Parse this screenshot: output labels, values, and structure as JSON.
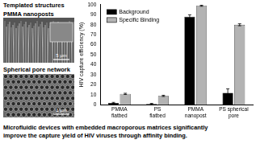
{
  "chart_data": {
    "type": "bar",
    "categories": [
      [
        "PMMA",
        "flatbed"
      ],
      [
        "PS",
        "flatbed"
      ],
      [
        "PMMA",
        "nanopost"
      ],
      [
        "PS spherical",
        "pore"
      ]
    ],
    "series": [
      {
        "name": "Background",
        "color": "#000000",
        "values": [
          2,
          1,
          88,
          12
        ],
        "errors": [
          0.5,
          0.5,
          2,
          4
        ]
      },
      {
        "name": "Specific Binding",
        "color": "#b3b3b3",
        "values": [
          11,
          9,
          99,
          80
        ],
        "errors": [
          0.6,
          0.6,
          0.5,
          1
        ]
      }
    ],
    "y_label": "HIV capture efficiency (%)",
    "ylim": [
      0,
      100
    ],
    "yticks": [
      0,
      10,
      20,
      30,
      40,
      50,
      60,
      70,
      80,
      90,
      100
    ],
    "grid": false,
    "legend": "upper left"
  },
  "panels": {
    "heading": "Templated structures",
    "images": [
      {
        "title": "PMMA nanoposts",
        "scale_bar": "5 μm"
      },
      {
        "title": "Spherical pore network",
        "scale_bar": "1 μm"
      }
    ]
  },
  "caption": [
    "Microfluidic devices with embedded macroporous matrices significantly",
    "improve the capture yield of HIV viruses through affinity binding."
  ]
}
